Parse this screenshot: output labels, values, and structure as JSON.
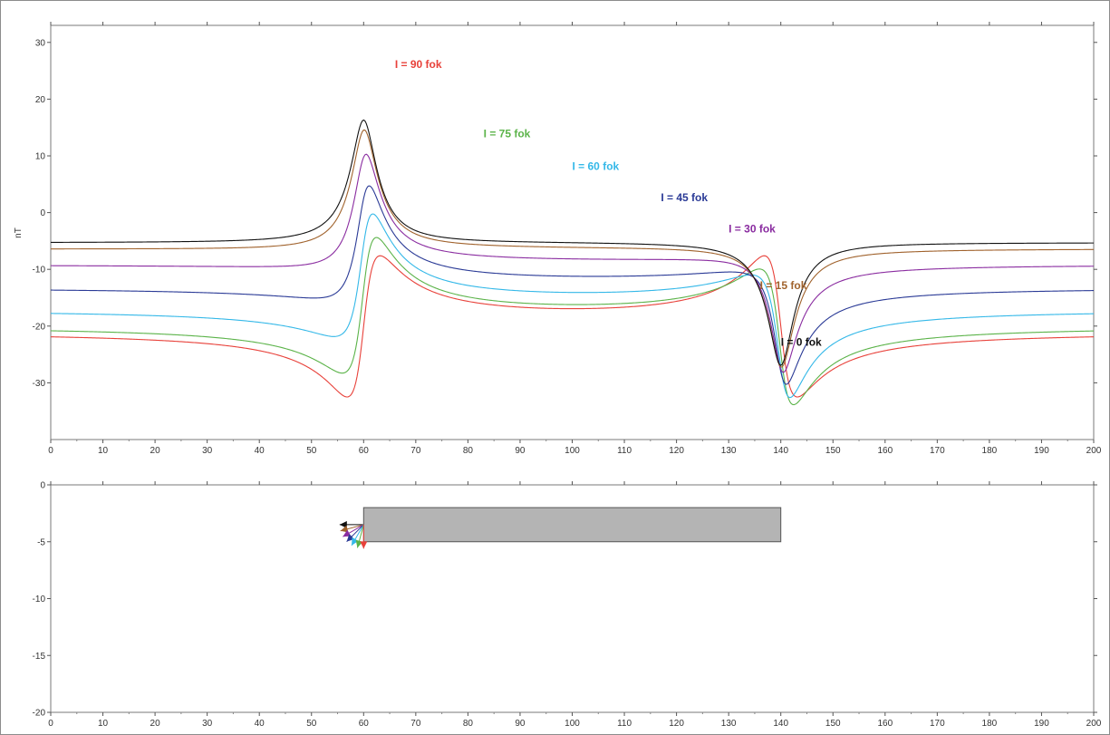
{
  "chart_data": [
    {
      "type": "line",
      "title": "",
      "xlabel": "",
      "ylabel": "nT",
      "xlim": [
        0,
        200
      ],
      "ylim": [
        -40,
        33
      ],
      "x_ticks": [
        "0",
        "10",
        "20",
        "30",
        "40",
        "50",
        "60",
        "70",
        "80",
        "90",
        "100",
        "110",
        "120",
        "130",
        "140",
        "150",
        "160",
        "170",
        "180",
        "190",
        "200"
      ],
      "y_ticks": [
        "30",
        "20",
        "10",
        "0",
        "-10",
        "-20",
        "-30"
      ],
      "grid": false,
      "prism": {
        "x_start": 60,
        "x_end": 140
      },
      "series": [
        {
          "name": "I = 90 fok",
          "inclination": 90,
          "color": "#e8413a",
          "base": -21.1,
          "amplitude": 39.1,
          "label_at": [
            66,
            25.5
          ]
        },
        {
          "name": "I = 75 fok",
          "inclination": 75,
          "color": "#5bb349",
          "base": -20.1,
          "amplitude": 37.8,
          "label_at": [
            83,
            13.3
          ]
        },
        {
          "name": "I = 60 fok",
          "inclination": 60,
          "color": "#34b8e8",
          "base": -17.2,
          "amplitude": 33.9,
          "label_at": [
            100,
            7.5
          ]
        },
        {
          "name": "I = 45 fok",
          "inclination": 45,
          "color": "#2a3a96",
          "base": -13.3,
          "amplitude": 27.7,
          "label_at": [
            117,
            2.0
          ]
        },
        {
          "name": "I = 30 fok",
          "inclination": 30,
          "color": "#8a2ca0",
          "base": -9.2,
          "amplitude": 19.6,
          "label_at": [
            130,
            -3.5
          ]
        },
        {
          "name": "I = 15 fok",
          "inclination": 15,
          "color": "#a0622c",
          "base": -6.4,
          "amplitude": 10.1,
          "label_at": [
            136,
            -13.5
          ]
        },
        {
          "name": "I = 0 fok",
          "inclination": 0,
          "color": "#111111",
          "base": -5.3,
          "amplitude": 0,
          "label_at": [
            140,
            -23.5
          ]
        }
      ]
    },
    {
      "type": "diagram",
      "title": "",
      "xlabel": "",
      "ylabel": "",
      "xlim": [
        0,
        200
      ],
      "ylim": [
        -20,
        0
      ],
      "x_ticks": [
        "0",
        "10",
        "20",
        "30",
        "40",
        "50",
        "60",
        "70",
        "80",
        "90",
        "100",
        "110",
        "120",
        "130",
        "140",
        "150",
        "160",
        "170",
        "180",
        "190",
        "200"
      ],
      "y_ticks": [
        "0",
        "-5",
        "-10",
        "-15",
        "-20"
      ],
      "body": {
        "x_start": 60,
        "x_end": 140,
        "top": -2,
        "bottom": -5,
        "color": "#b4b4b4"
      },
      "vector_origin": [
        60,
        -3.5
      ],
      "vector_length": 4.6,
      "vectors": [
        {
          "inclination": 0,
          "color": "#111111"
        },
        {
          "inclination": 15,
          "color": "#a0622c"
        },
        {
          "inclination": 30,
          "color": "#8a2ca0"
        },
        {
          "inclination": 45,
          "color": "#2a3a96"
        },
        {
          "inclination": 60,
          "color": "#34b8e8"
        },
        {
          "inclination": 75,
          "color": "#5bb349"
        },
        {
          "inclination": 90,
          "color": "#e8413a"
        }
      ]
    }
  ]
}
